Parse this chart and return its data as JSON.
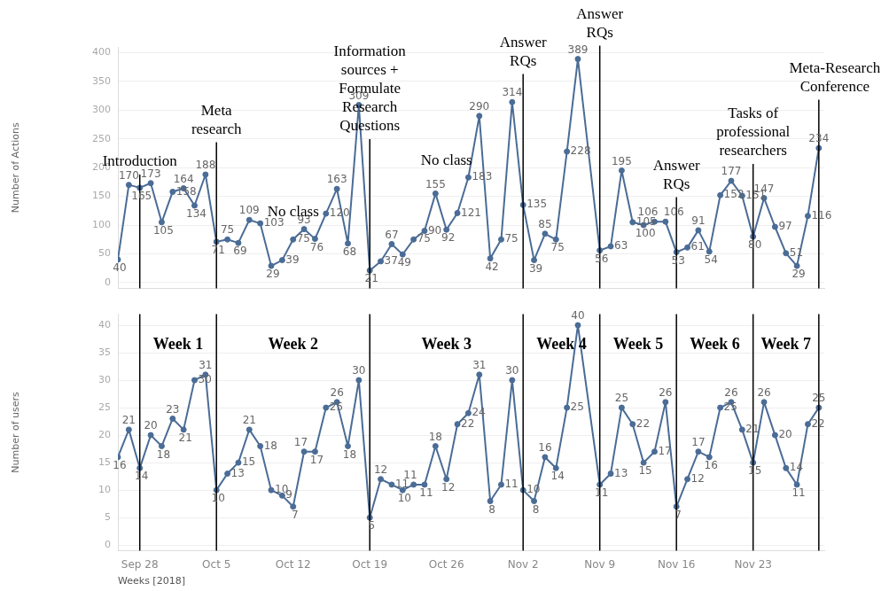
{
  "chart_data": [
    {
      "type": "line",
      "ylabel": "Number of Actions",
      "color": "#4a6c96",
      "marker": "circle",
      "data_labels": true,
      "grid": "y",
      "tick_labels": "y",
      "x": [
        "2018-09-26",
        "2018-09-27",
        "2018-09-28",
        "2018-09-29",
        "2018-09-30",
        "2018-10-01",
        "2018-10-02",
        "2018-10-03",
        "2018-10-04",
        "2018-10-05",
        "2018-10-06",
        "2018-10-07",
        "2018-10-08",
        "2018-10-09",
        "2018-10-10",
        "2018-10-11",
        "2018-10-12",
        "2018-10-13",
        "2018-10-14",
        "2018-10-15",
        "2018-10-16",
        "2018-10-17",
        "2018-10-18",
        "2018-10-19",
        "2018-10-20",
        "2018-10-21",
        "2018-10-22",
        "2018-10-23",
        "2018-10-24",
        "2018-10-25",
        "2018-10-26",
        "2018-10-27",
        "2018-10-28",
        "2018-10-29",
        "2018-10-30",
        "2018-10-31",
        "2018-11-01",
        "2018-11-02",
        "2018-11-03",
        "2018-11-04",
        "2018-11-05",
        "2018-11-06",
        "2018-11-07",
        "2018-11-09",
        "2018-11-10",
        "2018-11-11",
        "2018-11-12",
        "2018-11-13",
        "2018-11-14",
        "2018-11-15",
        "2018-11-16",
        "2018-11-17",
        "2018-11-18",
        "2018-11-19",
        "2018-11-20",
        "2018-11-21",
        "2018-11-22",
        "2018-11-23",
        "2018-11-24",
        "2018-11-25",
        "2018-11-26",
        "2018-11-27",
        "2018-11-28",
        "2018-11-29"
      ],
      "values": [
        40,
        170,
        165,
        173,
        105,
        158,
        164,
        134,
        188,
        71,
        75,
        69,
        109,
        103,
        29,
        39,
        75,
        93,
        76,
        120,
        163,
        68,
        309,
        21,
        37,
        67,
        49,
        75,
        90,
        155,
        92,
        121,
        183,
        290,
        42,
        75,
        314,
        135,
        39,
        85,
        75,
        228,
        389,
        56,
        63,
        195,
        105,
        100,
        106,
        106,
        53,
        61,
        91,
        54,
        152,
        177,
        151,
        80,
        147,
        97,
        51,
        29,
        116,
        234
      ],
      "xlim": [
        "2018-09-26",
        "2018-11-29T12:00"
      ],
      "ylim": [
        -10,
        410
      ],
      "yticks": [
        0,
        50,
        100,
        150,
        200,
        250,
        300,
        350,
        400
      ],
      "ref_lines": [
        {
          "axis": "x",
          "value": "2018-09-28",
          "color": "#000000",
          "label": "Introduction"
        },
        {
          "axis": "x",
          "value": "2018-10-05",
          "color": "#000000",
          "label": "Meta research"
        },
        {
          "axis": "x",
          "value": "2018-10-19",
          "color": "#000000",
          "label": "Information sources + Formulate Research Questions"
        },
        {
          "axis": "x",
          "value": "2018-11-02",
          "color": "#000000",
          "label": "Answer RQs"
        },
        {
          "axis": "x",
          "value": "2018-11-09",
          "color": "#000000",
          "label": "Answer RQs"
        },
        {
          "axis": "x",
          "value": "2018-11-16",
          "color": "#000000",
          "label": "Answer RQs"
        },
        {
          "axis": "x",
          "value": "2018-11-23",
          "color": "#000000",
          "label": "Tasks of professional researchers"
        },
        {
          "axis": "x",
          "value": "2018-11-29",
          "color": "#000000",
          "label": "Meta-Research Conference"
        }
      ],
      "annotations": [
        "No class",
        "No class"
      ]
    },
    {
      "type": "line",
      "ylabel": "Number of users",
      "xlabel": "Weeks [2018]",
      "color": "#4a6c96",
      "marker": "circle",
      "data_labels": true,
      "grid": "y",
      "x": [
        "2018-09-26",
        "2018-09-27",
        "2018-09-28",
        "2018-09-29",
        "2018-09-30",
        "2018-10-01",
        "2018-10-02",
        "2018-10-03",
        "2018-10-04",
        "2018-10-05",
        "2018-10-06",
        "2018-10-07",
        "2018-10-08",
        "2018-10-09",
        "2018-10-10",
        "2018-10-11",
        "2018-10-12",
        "2018-10-13",
        "2018-10-14",
        "2018-10-15",
        "2018-10-16",
        "2018-10-17",
        "2018-10-18",
        "2018-10-19",
        "2018-10-20",
        "2018-10-21",
        "2018-10-22",
        "2018-10-23",
        "2018-10-24",
        "2018-10-25",
        "2018-10-26",
        "2018-10-27",
        "2018-10-28",
        "2018-10-29",
        "2018-10-30",
        "2018-10-31",
        "2018-11-01",
        "2018-11-02",
        "2018-11-03",
        "2018-11-04",
        "2018-11-05",
        "2018-11-06",
        "2018-11-07",
        "2018-11-09",
        "2018-11-10",
        "2018-11-11",
        "2018-11-12",
        "2018-11-13",
        "2018-11-14",
        "2018-11-15",
        "2018-11-16",
        "2018-11-17",
        "2018-11-18",
        "2018-11-19",
        "2018-11-20",
        "2018-11-21",
        "2018-11-22",
        "2018-11-23",
        "2018-11-24",
        "2018-11-25",
        "2018-11-26",
        "2018-11-27",
        "2018-11-28",
        "2018-11-29"
      ],
      "values": [
        16,
        21,
        14,
        20,
        18,
        23,
        21,
        30,
        31,
        10,
        13,
        15,
        21,
        18,
        10,
        9,
        7,
        17,
        17,
        25,
        26,
        18,
        30,
        5,
        12,
        11,
        10,
        11,
        11,
        18,
        12,
        22,
        24,
        31,
        8,
        11,
        30,
        10,
        8,
        16,
        14,
        25,
        40,
        11,
        13,
        25,
        22,
        15,
        17,
        26,
        7,
        12,
        17,
        16,
        25,
        26,
        21,
        15,
        26,
        20,
        14,
        11,
        22,
        25
      ],
      "xlim": [
        "2018-09-26",
        "2018-11-29T12:00"
      ],
      "ylim": [
        -1,
        42
      ],
      "yticks": [
        0,
        5,
        10,
        15,
        20,
        25,
        30,
        35,
        40
      ],
      "xticks": [
        {
          "value": "2018-09-28",
          "label": "Sep 28"
        },
        {
          "value": "2018-10-05",
          "label": "Oct 5"
        },
        {
          "value": "2018-10-12",
          "label": "Oct 12"
        },
        {
          "value": "2018-10-19",
          "label": "Oct 19"
        },
        {
          "value": "2018-10-26",
          "label": "Oct 26"
        },
        {
          "value": "2018-11-02",
          "label": "Nov 2"
        },
        {
          "value": "2018-11-09",
          "label": "Nov 9"
        },
        {
          "value": "2018-11-16",
          "label": "Nov 16"
        },
        {
          "value": "2018-11-23",
          "label": "Nov 23"
        }
      ],
      "ref_lines": [
        {
          "axis": "x",
          "value": "2018-09-28",
          "color": "#000000"
        },
        {
          "axis": "x",
          "value": "2018-10-05",
          "color": "#000000"
        },
        {
          "axis": "x",
          "value": "2018-10-19",
          "color": "#000000"
        },
        {
          "axis": "x",
          "value": "2018-11-02",
          "color": "#000000"
        },
        {
          "axis": "x",
          "value": "2018-11-09",
          "color": "#000000"
        },
        {
          "axis": "x",
          "value": "2018-11-16",
          "color": "#000000"
        },
        {
          "axis": "x",
          "value": "2018-11-23",
          "color": "#000000"
        },
        {
          "axis": "x",
          "value": "2018-11-29",
          "color": "#000000"
        }
      ],
      "annotations": [
        "Week 1",
        "Week 2",
        "Week 3",
        "Week 4",
        "Week 5",
        "Week 6",
        "Week 7"
      ]
    }
  ]
}
